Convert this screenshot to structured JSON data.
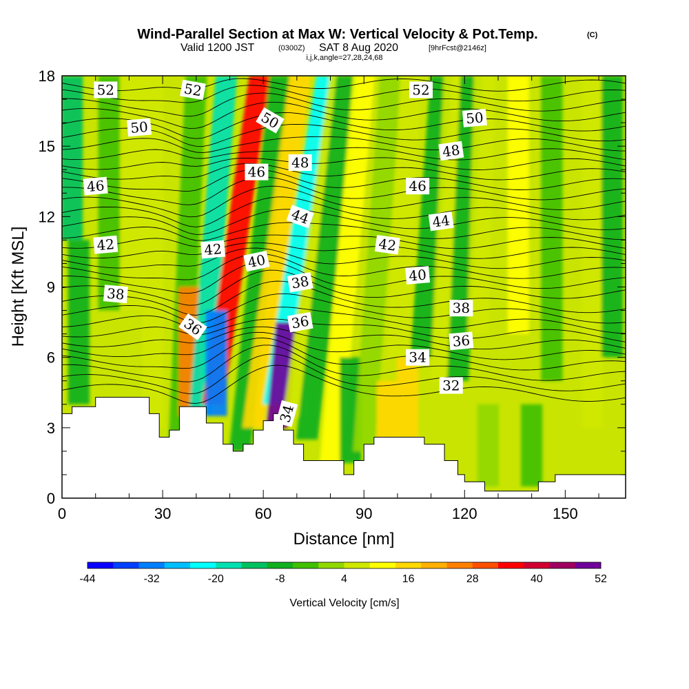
{
  "header": {
    "title": "Wind-Parallel Section at Max W: Vertical Velocity & Pot.Temp.",
    "title_mark": "(C)",
    "valid_prefix": "Valid 1200 JST",
    "valid_utc": "(0300Z)",
    "valid_date": "SAT 8 Aug 2020",
    "forecast_note": "[9hrFcst@2146z]",
    "section_params": "i,j,k,angle=27,28,24,68"
  },
  "colorbar": {
    "label": "Vertical Velocity [cm/s]",
    "tick_labels": [
      "-44",
      "-32",
      "-20",
      "-8",
      "4",
      "16",
      "28",
      "40",
      "52"
    ],
    "colors": [
      "#0a00ff",
      "#0040ff",
      "#007fff",
      "#00bfff",
      "#00ffff",
      "#00e0b0",
      "#00c060",
      "#10b020",
      "#40c000",
      "#90d800",
      "#d0e800",
      "#ffff00",
      "#ffd800",
      "#ffb000",
      "#ff8000",
      "#ff5000",
      "#ff0000",
      "#d00030",
      "#a00060",
      "#70009a"
    ]
  },
  "chart_data": {
    "type": "heatmap",
    "title": "Wind-Parallel Section at Max W: Vertical Velocity & Pot.Temp.",
    "xlabel": "Distance [nm]",
    "ylabel": "Height [Kft MSL]",
    "xlim": [
      0,
      168
    ],
    "ylim": [
      0,
      18
    ],
    "x_ticks": [
      "0",
      "30",
      "60",
      "90",
      "120",
      "150"
    ],
    "y_ticks": [
      "0",
      "3",
      "6",
      "9",
      "12",
      "15",
      "18"
    ],
    "x_tick_values": [
      0,
      30,
      60,
      90,
      120,
      150
    ],
    "y_tick_values": [
      0,
      3,
      6,
      9,
      12,
      15,
      18
    ],
    "colorbar_range": [
      -44,
      52
    ],
    "velocity_features": [
      {
        "x": 3,
        "top": 18,
        "bottom": 11,
        "w": -14,
        "lean": 0
      },
      {
        "x": 5,
        "top": 11,
        "bottom": 4,
        "w": -6,
        "lean": 0
      },
      {
        "x": 14,
        "top": 18,
        "bottom": 8,
        "w": -2,
        "lean": 0
      },
      {
        "x": 21,
        "top": 18,
        "bottom": 8,
        "w": 6,
        "lean": 0
      },
      {
        "x": 27,
        "top": 18,
        "bottom": 3,
        "w": 4,
        "lean": 0
      },
      {
        "x": 35,
        "top": 18,
        "bottom": 2.5,
        "w": -4,
        "lean": 5
      },
      {
        "x": 38,
        "top": 9,
        "bottom": 3.5,
        "w": 24,
        "lean": 0
      },
      {
        "x": 41,
        "top": 18,
        "bottom": 3.5,
        "w": -20,
        "lean": 8
      },
      {
        "x": 45,
        "top": 18,
        "bottom": 4,
        "w": 34,
        "lean": 14
      },
      {
        "x": 46,
        "top": 8,
        "bottom": 3.5,
        "w": -30,
        "lean": 0
      },
      {
        "x": 53,
        "top": 18,
        "bottom": 2,
        "w": -10,
        "lean": 12
      },
      {
        "x": 57,
        "top": 18,
        "bottom": 3,
        "w": 18,
        "lean": 14
      },
      {
        "x": 63,
        "top": 18,
        "bottom": 4,
        "w": -22,
        "lean": 16
      },
      {
        "x": 64,
        "top": 7.5,
        "bottom": 3,
        "w": 48,
        "lean": 3
      },
      {
        "x": 69,
        "top": 18,
        "bottom": 3.5,
        "w": 8,
        "lean": 14
      },
      {
        "x": 73,
        "top": 18,
        "bottom": 2.5,
        "w": -8,
        "lean": 12
      },
      {
        "x": 80,
        "top": 18,
        "bottom": 1.5,
        "w": 10,
        "lean": 10
      },
      {
        "x": 86,
        "top": 6,
        "bottom": 1.5,
        "w": -8,
        "lean": 0
      },
      {
        "x": 90,
        "top": 18,
        "bottom": 2,
        "w": 2,
        "lean": 8
      },
      {
        "x": 97,
        "top": 5,
        "bottom": 2.5,
        "w": 14,
        "lean": 0
      },
      {
        "x": 103,
        "top": 6,
        "bottom": 2.5,
        "w": 18,
        "lean": 0
      },
      {
        "x": 100,
        "top": 18,
        "bottom": 6,
        "w": 4,
        "lean": 4
      },
      {
        "x": 107,
        "top": 18,
        "bottom": 6,
        "w": -6,
        "lean": 6
      },
      {
        "x": 113,
        "top": 18,
        "bottom": 5,
        "w": 6,
        "lean": 4
      },
      {
        "x": 118,
        "top": 18,
        "bottom": 5,
        "w": -10,
        "lean": 4
      },
      {
        "x": 124,
        "top": 18,
        "bottom": 7,
        "w": 8,
        "lean": 2
      },
      {
        "x": 127,
        "top": 4,
        "bottom": 0.5,
        "w": 2,
        "lean": 0
      },
      {
        "x": 136,
        "top": 18,
        "bottom": 7,
        "w": 10,
        "lean": 0
      },
      {
        "x": 140,
        "top": 4,
        "bottom": 0.5,
        "w": -2,
        "lean": 0
      },
      {
        "x": 146,
        "top": 18,
        "bottom": 5,
        "w": -4,
        "lean": 0
      },
      {
        "x": 158,
        "top": 18,
        "bottom": 3,
        "w": 8,
        "lean": 0
      },
      {
        "x": 164,
        "top": 18,
        "bottom": 6,
        "w": -6,
        "lean": 0
      }
    ],
    "terrain": [
      [
        0,
        3.6
      ],
      [
        3,
        3.6
      ],
      [
        3,
        3.9
      ],
      [
        10,
        3.9
      ],
      [
        10,
        4.3
      ],
      [
        26,
        4.3
      ],
      [
        26,
        3.6
      ],
      [
        29,
        3.6
      ],
      [
        29,
        2.6
      ],
      [
        32,
        2.6
      ],
      [
        32,
        2.9
      ],
      [
        35,
        2.9
      ],
      [
        35,
        3.9
      ],
      [
        43,
        3.9
      ],
      [
        43,
        3.2
      ],
      [
        48,
        3.2
      ],
      [
        48,
        2.3
      ],
      [
        51,
        2.3
      ],
      [
        51,
        2
      ],
      [
        54,
        2
      ],
      [
        54,
        2.3
      ],
      [
        57,
        2.3
      ],
      [
        57,
        2.9
      ],
      [
        60,
        2.9
      ],
      [
        60,
        3.3
      ],
      [
        63,
        3.3
      ],
      [
        63,
        3.6
      ],
      [
        66,
        3.6
      ],
      [
        66,
        2.9
      ],
      [
        69,
        2.9
      ],
      [
        69,
        2.3
      ],
      [
        72,
        2.3
      ],
      [
        72,
        1.6
      ],
      [
        84,
        1.6
      ],
      [
        84,
        1
      ],
      [
        87,
        1
      ],
      [
        87,
        1.6
      ],
      [
        90,
        1.6
      ],
      [
        90,
        2.3
      ],
      [
        93,
        2.3
      ],
      [
        93,
        2.6
      ],
      [
        108,
        2.6
      ],
      [
        108,
        2.3
      ],
      [
        114,
        2.3
      ],
      [
        114,
        1.6
      ],
      [
        118,
        1.6
      ],
      [
        118,
        1
      ],
      [
        120,
        1
      ],
      [
        120,
        0.7
      ],
      [
        126,
        0.7
      ],
      [
        126,
        0.3
      ],
      [
        142,
        0.3
      ],
      [
        142,
        0.7
      ],
      [
        147,
        0.7
      ],
      [
        147,
        1
      ],
      [
        168,
        1
      ]
    ],
    "theta_contours": [
      {
        "value": 52,
        "label": "52",
        "label_xy": [
          13,
          17.4
        ],
        "label_angle": 0
      },
      {
        "value": 52,
        "label": "52",
        "label_xy": [
          39,
          17.4
        ],
        "label_angle": 10
      },
      {
        "value": 52,
        "label": "52",
        "label_xy": [
          107,
          17.4
        ],
        "label_angle": 0
      },
      {
        "value": 50,
        "label": "50",
        "label_xy": [
          23,
          15.8
        ],
        "label_angle": -5
      },
      {
        "value": 50,
        "label": "50",
        "label_xy": [
          62,
          16.1
        ],
        "label_angle": 30
      },
      {
        "value": 50,
        "label": "50",
        "label_xy": [
          123,
          16.2
        ],
        "label_angle": -5
      },
      {
        "value": 48,
        "label": "48",
        "label_xy": [
          71,
          14.3
        ],
        "label_angle": 0
      },
      {
        "value": 48,
        "label": "48",
        "label_xy": [
          116,
          14.8
        ],
        "label_angle": -8
      },
      {
        "value": 46,
        "label": "46",
        "label_xy": [
          10,
          13.3
        ],
        "label_angle": -5
      },
      {
        "value": 46,
        "label": "46",
        "label_xy": [
          58,
          13.9
        ],
        "label_angle": 0
      },
      {
        "value": 46,
        "label": "46",
        "label_xy": [
          106,
          13.3
        ],
        "label_angle": 0
      },
      {
        "value": 44,
        "label": "44",
        "label_xy": [
          71,
          12
        ],
        "label_angle": 20
      },
      {
        "value": 44,
        "label": "44",
        "label_xy": [
          113,
          11.8
        ],
        "label_angle": -8
      },
      {
        "value": 42,
        "label": "42",
        "label_xy": [
          13,
          10.8
        ],
        "label_angle": -5
      },
      {
        "value": 42,
        "label": "42",
        "label_xy": [
          45,
          10.6
        ],
        "label_angle": -5
      },
      {
        "value": 42,
        "label": "42",
        "label_xy": [
          97,
          10.8
        ],
        "label_angle": 8
      },
      {
        "value": 40,
        "label": "40",
        "label_xy": [
          58,
          10.1
        ],
        "label_angle": -12
      },
      {
        "value": 40,
        "label": "40",
        "label_xy": [
          106,
          9.5
        ],
        "label_angle": -5
      },
      {
        "value": 38,
        "label": "38",
        "label_xy": [
          16,
          8.7
        ],
        "label_angle": 5
      },
      {
        "value": 38,
        "label": "38",
        "label_xy": [
          71,
          9.2
        ],
        "label_angle": -10
      },
      {
        "value": 38,
        "label": "38",
        "label_xy": [
          119,
          8.1
        ],
        "label_angle": 0
      },
      {
        "value": 36,
        "label": "36",
        "label_xy": [
          39,
          7.3
        ],
        "label_angle": 35
      },
      {
        "value": 36,
        "label": "36",
        "label_xy": [
          71,
          7.5
        ],
        "label_angle": -10
      },
      {
        "value": 36,
        "label": "36",
        "label_xy": [
          119,
          6.7
        ],
        "label_angle": -5
      },
      {
        "value": 34,
        "label": "34",
        "label_xy": [
          67,
          3.6
        ],
        "label_angle": -75
      },
      {
        "value": 34,
        "label": "34",
        "label_xy": [
          106,
          6
        ],
        "label_angle": 0
      },
      {
        "value": 32,
        "label": "32",
        "label_xy": [
          116,
          4.8
        ],
        "label_angle": 0
      }
    ]
  }
}
